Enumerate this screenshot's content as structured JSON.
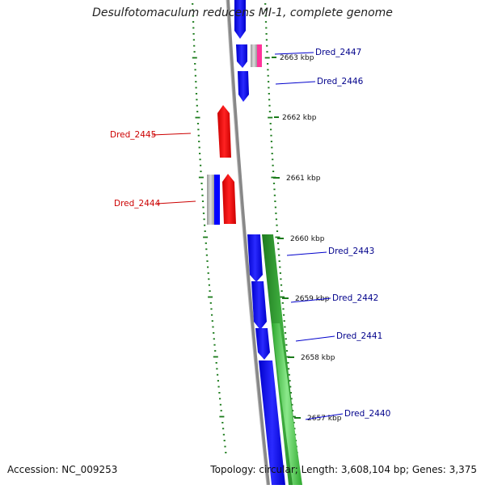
{
  "title": "Desulfotomaculum reducens MI-1, complete genome",
  "footer": {
    "accession": "Accession: NC_009253",
    "summary": "Topology: circular; Length: 3,608,104 bp; Genes: 3,375"
  },
  "colors": {
    "backbone": "#888888",
    "forward_cds": "#0000ff",
    "reverse_cds": "#ff0000",
    "tick": "#1a7a1a",
    "label_blue": "#00008b",
    "label_red": "#cc0000",
    "gc_green": "#2e8b2e",
    "gc_light": "#66dd66",
    "pink": "#ff3399"
  },
  "scale": {
    "unit": "kbp",
    "ticks": [
      {
        "value": 2663,
        "label": "2663 kbp"
      },
      {
        "value": 2662,
        "label": "2662 kbp"
      },
      {
        "value": 2661,
        "label": "2661 kbp"
      },
      {
        "value": 2660,
        "label": "2660 kbp"
      },
      {
        "value": 2659,
        "label": "2659 kbp"
      },
      {
        "value": 2658,
        "label": "2658 kbp"
      },
      {
        "value": 2657,
        "label": "2657 kbp"
      }
    ]
  },
  "genes": [
    {
      "label": "Dred_2447",
      "strand": "forward",
      "color": "blue"
    },
    {
      "label": "Dred_2446",
      "strand": "forward",
      "color": "blue"
    },
    {
      "label": "Dred_2445",
      "strand": "reverse",
      "color": "red"
    },
    {
      "label": "Dred_2444",
      "strand": "reverse",
      "color": "red"
    },
    {
      "label": "Dred_2443",
      "strand": "forward",
      "color": "blue"
    },
    {
      "label": "Dred_2442",
      "strand": "forward",
      "color": "blue"
    },
    {
      "label": "Dred_2441",
      "strand": "forward",
      "color": "blue"
    },
    {
      "label": "Dred_2440",
      "strand": "forward",
      "color": "blue"
    }
  ]
}
